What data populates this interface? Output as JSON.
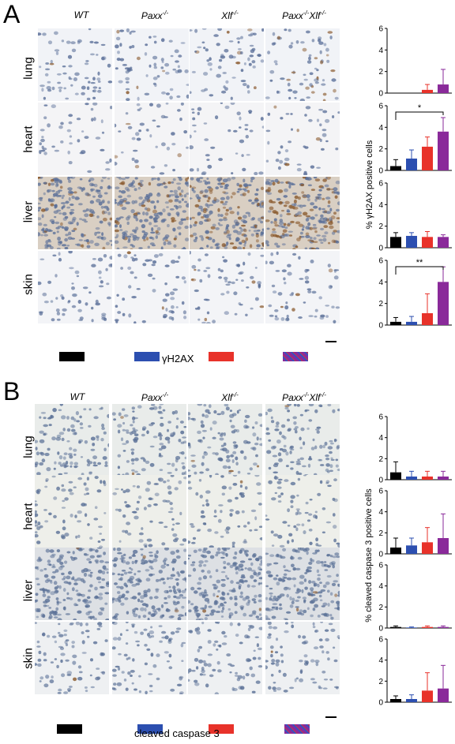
{
  "panels": [
    {
      "letter": "A",
      "columns": [
        "WT",
        "Paxx-/-",
        "Xlf-/-",
        "Paxx-/-Xlf-/-"
      ],
      "rows": [
        "lung",
        "heart",
        "liver",
        "skin"
      ],
      "stain": "γH2AX",
      "swatch_colors": [
        "#000000",
        "#2c4fb0",
        "#e8322a",
        "#8a2a9a"
      ],
      "y_axis_title": "% γH2AX positive cells",
      "chart_data": [
        {
          "type": "bar",
          "title": "lung",
          "categories": [
            "WT",
            "Paxx-/-",
            "Xlf-/-",
            "Paxx-/-Xlf-/-"
          ],
          "values": [
            0,
            0,
            0.3,
            0.8
          ],
          "errors": [
            0,
            0,
            0.5,
            1.4
          ],
          "ylim": [
            0,
            6
          ],
          "yticks": [
            "0",
            "2",
            "4",
            "6"
          ],
          "significance": []
        },
        {
          "type": "bar",
          "title": "heart",
          "categories": [
            "WT",
            "Paxx-/-",
            "Xlf-/-",
            "Paxx-/-Xlf-/-"
          ],
          "values": [
            0.4,
            1.1,
            2.2,
            3.6
          ],
          "errors": [
            0.6,
            0.8,
            0.9,
            1.3
          ],
          "ylim": [
            0,
            6
          ],
          "yticks": [
            "0",
            "2",
            "4",
            "6"
          ],
          "significance": [
            {
              "from": 0,
              "to": 3,
              "label": "*"
            }
          ]
        },
        {
          "type": "bar",
          "title": "liver",
          "categories": [
            "WT",
            "Paxx-/-",
            "Xlf-/-",
            "Paxx-/-Xlf-/-"
          ],
          "values": [
            1.0,
            1.1,
            1.0,
            1.0
          ],
          "errors": [
            0.4,
            0.3,
            0.5,
            0.2
          ],
          "ylim": [
            0,
            6
          ],
          "yticks": [
            "0",
            "2",
            "4",
            "6"
          ],
          "significance": []
        },
        {
          "type": "bar",
          "title": "skin",
          "categories": [
            "WT",
            "Paxx-/-",
            "Xlf-/-",
            "Paxx-/-Xlf-/-"
          ],
          "values": [
            0.3,
            0.3,
            1.1,
            4.0
          ],
          "errors": [
            0.4,
            0.5,
            1.8,
            1.4
          ],
          "ylim": [
            0,
            6
          ],
          "yticks": [
            "0",
            "2",
            "4",
            "6"
          ],
          "significance": [
            {
              "from": 0,
              "to": 3,
              "label": "**"
            }
          ]
        }
      ]
    },
    {
      "letter": "B",
      "columns": [
        "WT",
        "Paxx-/-",
        "Xlf-/-",
        "Paxx-/-Xlf-/-"
      ],
      "rows": [
        "lung",
        "heart",
        "liver",
        "skin"
      ],
      "stain": "cleaved caspase 3",
      "swatch_colors": [
        "#000000",
        "#2c4fb0",
        "#e8322a",
        "#8a2a9a"
      ],
      "y_axis_title": "% cleaved caspase 3 positive cells",
      "chart_data": [
        {
          "type": "bar",
          "title": "lung",
          "categories": [
            "WT",
            "Paxx-/-",
            "Xlf-/-",
            "Paxx-/-Xlf-/-"
          ],
          "values": [
            0.7,
            0.3,
            0.3,
            0.3
          ],
          "errors": [
            1.0,
            0.5,
            0.5,
            0.5
          ],
          "ylim": [
            0,
            6
          ],
          "yticks": [
            "0",
            "2",
            "4",
            "6"
          ],
          "significance": []
        },
        {
          "type": "bar",
          "title": "heart",
          "categories": [
            "WT",
            "Paxx-/-",
            "Xlf-/-",
            "Paxx-/-Xlf-/-"
          ],
          "values": [
            0.6,
            0.8,
            1.1,
            1.5
          ],
          "errors": [
            0.9,
            0.7,
            1.4,
            2.3
          ],
          "ylim": [
            0,
            6
          ],
          "yticks": [
            "0",
            "2",
            "4",
            "6"
          ],
          "significance": []
        },
        {
          "type": "bar",
          "title": "liver",
          "categories": [
            "WT",
            "Paxx-/-",
            "Xlf-/-",
            "Paxx-/-Xlf-/-"
          ],
          "values": [
            0.1,
            0.05,
            0.1,
            0.1
          ],
          "errors": [
            0.1,
            0.05,
            0.1,
            0.1
          ],
          "ylim": [
            0,
            6
          ],
          "yticks": [
            "0",
            "2",
            "4",
            "6"
          ],
          "significance": []
        },
        {
          "type": "bar",
          "title": "skin",
          "categories": [
            "WT",
            "Paxx-/-",
            "Xlf-/-",
            "Paxx-/-Xlf-/-"
          ],
          "values": [
            0.3,
            0.3,
            1.1,
            1.3
          ],
          "errors": [
            0.3,
            0.4,
            1.7,
            2.2
          ],
          "ylim": [
            0,
            6
          ],
          "yticks": [
            "0",
            "2",
            "4",
            "6"
          ],
          "significance": []
        }
      ]
    }
  ]
}
